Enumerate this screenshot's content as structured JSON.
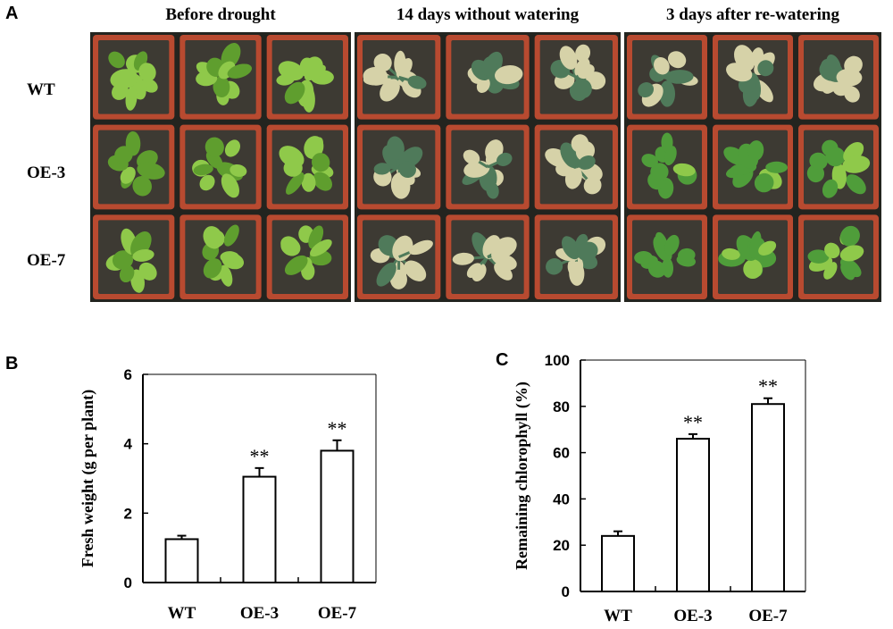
{
  "panel_a": {
    "letter": "A",
    "columns": [
      "Before drought",
      "14 days without watering",
      "3 days after re-watering"
    ],
    "rows": [
      "WT",
      "OE-3",
      "OE-7"
    ],
    "colors": {
      "background": "#23241f",
      "pot": "#b84a30",
      "soil": "#3d3a33",
      "healthy_leaf": "#8fc94a",
      "healthy_leaf_dark": "#5f9e2e",
      "wilted_leaf": "#d6d2a8",
      "drought_stem": "#4f7a5a",
      "recovered_leaf": "#4f9d3a"
    }
  },
  "panel_b": {
    "letter": "B",
    "chart_data": {
      "type": "bar",
      "categories": [
        "WT",
        "OE-3",
        "OE-7"
      ],
      "values": [
        1.25,
        3.05,
        3.8
      ],
      "errors": [
        0.1,
        0.25,
        0.3
      ],
      "annotations": [
        "",
        "**",
        "**"
      ],
      "ylabel": "Fresh weight (g per plant)",
      "ylim": [
        0,
        6
      ],
      "yticks": [
        0,
        2,
        4,
        6
      ],
      "grid": false
    }
  },
  "panel_c": {
    "letter": "C",
    "chart_data": {
      "type": "bar",
      "categories": [
        "WT",
        "OE-3",
        "OE-7"
      ],
      "values": [
        24,
        66,
        81
      ],
      "errors": [
        2,
        2,
        2.5
      ],
      "annotations": [
        "",
        "**",
        "**"
      ],
      "ylabel": "Remaining chlorophyll (%)",
      "ylim": [
        0,
        100
      ],
      "yticks": [
        0,
        20,
        40,
        60,
        80,
        100
      ],
      "grid": false
    }
  }
}
